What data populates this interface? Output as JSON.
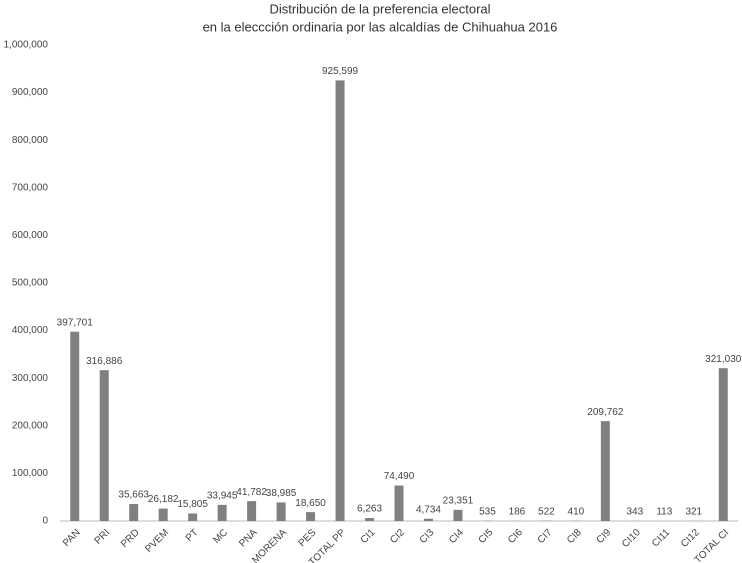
{
  "chart_data": {
    "type": "bar",
    "title": [
      "Distribución de la preferencia electoral",
      "en la eleccción ordinaria por las alcaldías de Chihuahua 2016"
    ],
    "categories": [
      "PAN",
      "PRI",
      "PRD",
      "PVEM",
      "PT",
      "MC",
      "PNA",
      "MORENA",
      "PES",
      "TOTAL PP",
      "CI1",
      "CI2",
      "CI3",
      "CI4",
      "CI5",
      "CI6",
      "CI7",
      "CI8",
      "CI9",
      "CI10",
      "CI11",
      "CI12",
      "TOTAL CI"
    ],
    "values": [
      397701,
      316886,
      35663,
      26182,
      15805,
      33945,
      41782,
      38985,
      18650,
      925599,
      6263,
      74490,
      4734,
      23351,
      535,
      186,
      522,
      410,
      209762,
      343,
      113,
      321,
      321030
    ],
    "value_labels": [
      "397,701",
      "316,886",
      "35,663",
      "26,182",
      "15,805",
      "33,945",
      "41,782",
      "38,985",
      "18,650",
      "925,599",
      "6,263",
      "74,490",
      "4,734",
      "23,351",
      "535",
      "186",
      "522",
      "410",
      "209,762",
      "343",
      "113",
      "321",
      "321,030"
    ],
    "color": "#808080",
    "ylim": [
      0,
      1000000
    ],
    "yticks": [
      0,
      {
        "value": 100000,
        "label": "100,000"
      },
      {
        "value": 200000,
        "label": "200,000"
      },
      {
        "value": 300000,
        "label": "300,000"
      },
      {
        "value": 400000,
        "label": "400,000"
      },
      {
        "value": 500000,
        "label": "500,000"
      },
      {
        "value": 600000,
        "label": "600,000"
      },
      {
        "value": 700000,
        "label": "700,000"
      },
      {
        "value": 800000,
        "label": "800,000"
      },
      {
        "value": 900000,
        "label": "900,000"
      },
      {
        "value": 1000000,
        "label": "1,000,000"
      }
    ],
    "grid": false
  }
}
